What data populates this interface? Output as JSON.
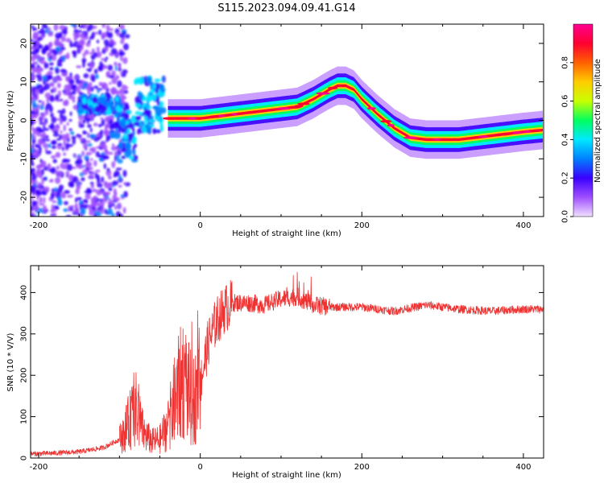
{
  "title": "S115.2023.094.09.41.G14",
  "chart_data": [
    {
      "type": "heatmap",
      "xlabel": "Height of straight line (km)",
      "ylabel": "Frequency (Hz)",
      "xlim": [
        -210,
        425
      ],
      "ylim": [
        -25,
        25
      ],
      "xticks": [
        -200,
        0,
        200,
        400
      ],
      "yticks": [
        -20,
        -10,
        0,
        10,
        20
      ],
      "colorbar": {
        "label": "Normalized spectral amplitude",
        "range": [
          0,
          1
        ],
        "ticks": [
          0.0,
          0.2,
          0.4,
          0.6,
          0.8
        ],
        "colormap": [
          "#f0e0ff",
          "#a050ff",
          "#3a00ff",
          "#0080ff",
          "#00e8ff",
          "#00ff60",
          "#c8ff00",
          "#ffcc00",
          "#ff6000",
          "#ff0030",
          "#ff0090"
        ]
      },
      "ridge": {
        "x": [
          -40,
          -20,
          0,
          20,
          40,
          60,
          80,
          100,
          120,
          140,
          160,
          170,
          180,
          190,
          200,
          220,
          240,
          260,
          280,
          300,
          320,
          340,
          360,
          380,
          400,
          425
        ],
        "y": [
          0.5,
          0.5,
          0.5,
          1.0,
          1.5,
          2.0,
          2.5,
          3.0,
          3.5,
          5.5,
          8.0,
          9.0,
          9.0,
          8.0,
          5.5,
          1.5,
          -2.0,
          -4.5,
          -5.0,
          -5.0,
          -5.0,
          -4.5,
          -4.0,
          -3.5,
          -3.0,
          -2.5
        ]
      }
    },
    {
      "type": "line",
      "xlabel": "Height of straight line (km)",
      "ylabel": "SNR (10 * V/V)",
      "xlim": [
        -210,
        425
      ],
      "ylim": [
        0,
        465
      ],
      "xticks": [
        -200,
        0,
        200,
        400
      ],
      "yticks": [
        0,
        100,
        200,
        300,
        400
      ],
      "line_color": "#ee3333",
      "series": [
        {
          "x": [
            -210,
            -180,
            -150,
            -120,
            -100,
            -90,
            -80,
            -70,
            -60,
            -50,
            -40,
            -30,
            -20,
            -10,
            0,
            10,
            20,
            30,
            40,
            60,
            80,
            100,
            120,
            140,
            160,
            200,
            240,
            280,
            320,
            360,
            400,
            425
          ],
          "y": [
            10,
            12,
            15,
            25,
            45,
            80,
            120,
            60,
            40,
            45,
            80,
            150,
            200,
            130,
            180,
            280,
            330,
            360,
            375,
            375,
            370,
            385,
            390,
            370,
            365,
            365,
            355,
            370,
            360,
            355,
            360,
            360
          ]
        }
      ]
    }
  ]
}
